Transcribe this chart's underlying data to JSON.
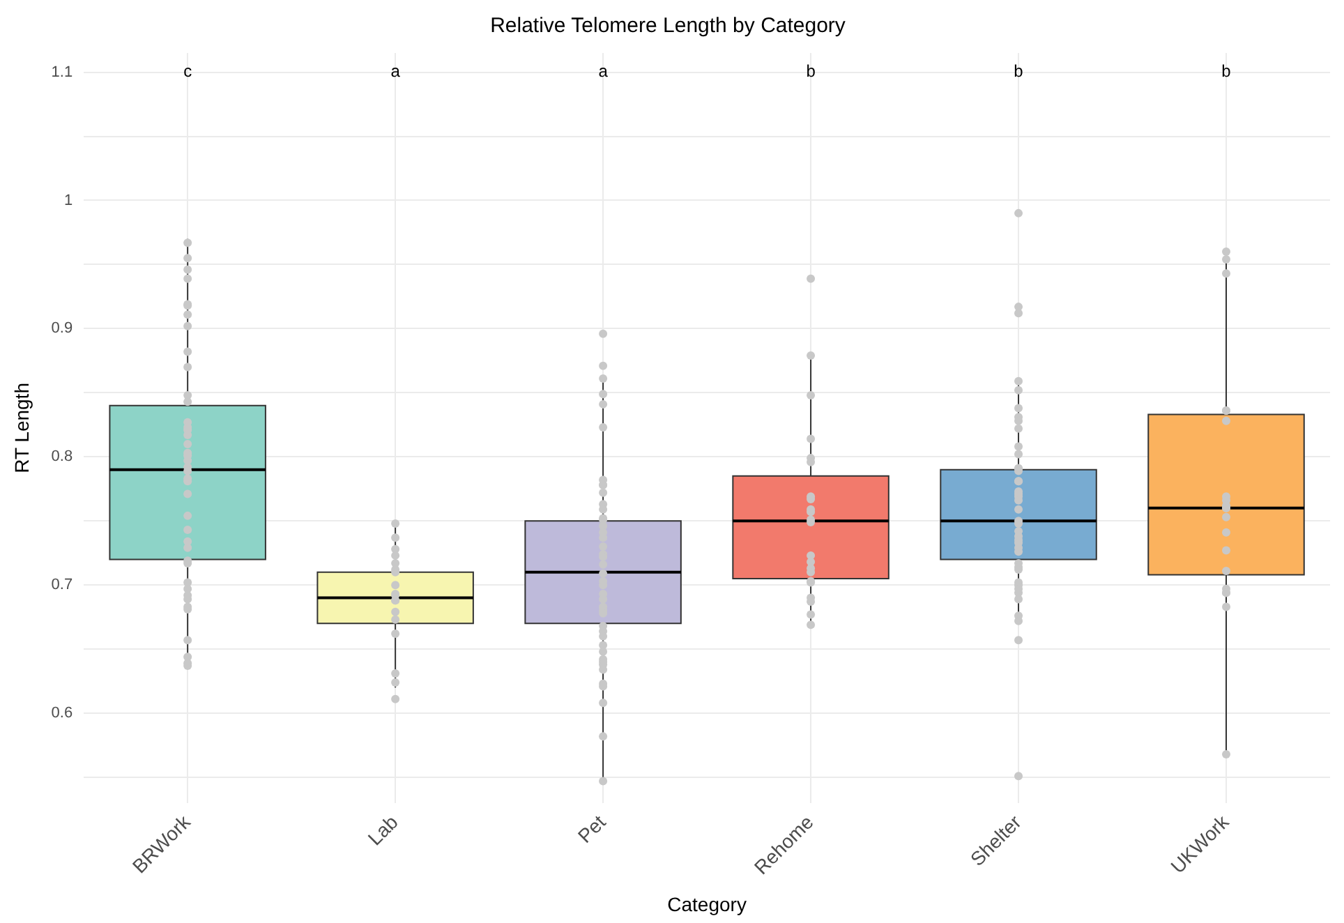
{
  "chart_data": {
    "type": "box",
    "title": "Relative Telomere Length by Category",
    "xlabel": "Category",
    "ylabel": "RT Length",
    "categories": [
      "BRWork",
      "Lab",
      "Pet",
      "Rehome",
      "Shelter",
      "UKWork"
    ],
    "colors": [
      "#8dd3c7",
      "#f7f5b0",
      "#bebada",
      "#f27a6c",
      "#78abd1",
      "#fbb25e"
    ],
    "boxes": [
      {
        "low": 0.64,
        "q1": 0.72,
        "median": 0.79,
        "q3": 0.84,
        "high": 0.97
      },
      {
        "low": 0.62,
        "q1": 0.67,
        "median": 0.69,
        "q3": 0.71,
        "high": 0.75
      },
      {
        "low": 0.55,
        "q1": 0.67,
        "median": 0.71,
        "q3": 0.75,
        "high": 0.86
      },
      {
        "low": 0.67,
        "q1": 0.705,
        "median": 0.75,
        "q3": 0.785,
        "high": 0.88
      },
      {
        "low": 0.67,
        "q1": 0.72,
        "median": 0.75,
        "q3": 0.79,
        "high": 0.86
      },
      {
        "low": 0.57,
        "q1": 0.708,
        "median": 0.76,
        "q3": 0.833,
        "high": 0.96
      }
    ],
    "series": [
      {
        "type": "scatter",
        "color": "#c8c8c8",
        "x": [
          "BRWork",
          "BRWork",
          "BRWork",
          "BRWork",
          "BRWork",
          "BRWork",
          "BRWork",
          "BRWork",
          "BRWork",
          "BRWork",
          "BRWork",
          "BRWork",
          "BRWork",
          "BRWork",
          "BRWork",
          "BRWork",
          "BRWork",
          "BRWork",
          "BRWork",
          "BRWork",
          "BRWork",
          "BRWork",
          "BRWork",
          "BRWork",
          "BRWork",
          "BRWork",
          "BRWork",
          "BRWork",
          "BRWork",
          "BRWork",
          "BRWork",
          "BRWork",
          "BRWork",
          "BRWork",
          "BRWork",
          "BRWork",
          "BRWork",
          "BRWork",
          "BRWork",
          "BRWork",
          "BRWork",
          "Lab",
          "Lab",
          "Lab",
          "Lab",
          "Lab",
          "Lab",
          "Lab",
          "Lab",
          "Lab",
          "Lab",
          "Lab",
          "Lab",
          "Lab",
          "Lab",
          "Lab",
          "Lab",
          "Lab",
          "Lab",
          "Pet",
          "Pet",
          "Pet",
          "Pet",
          "Pet",
          "Pet",
          "Pet",
          "Pet",
          "Pet",
          "Pet",
          "Pet",
          "Pet",
          "Pet",
          "Pet",
          "Pet",
          "Pet",
          "Pet",
          "Pet",
          "Pet",
          "Pet",
          "Pet",
          "Pet",
          "Pet",
          "Pet",
          "Pet",
          "Pet",
          "Pet",
          "Pet",
          "Pet",
          "Pet",
          "Pet",
          "Pet",
          "Pet",
          "Pet",
          "Pet",
          "Pet",
          "Pet",
          "Pet",
          "Pet",
          "Pet",
          "Pet",
          "Pet",
          "Pet",
          "Rehome",
          "Rehome",
          "Rehome",
          "Rehome",
          "Rehome",
          "Rehome",
          "Rehome",
          "Rehome",
          "Rehome",
          "Rehome",
          "Rehome",
          "Rehome",
          "Rehome",
          "Rehome",
          "Rehome",
          "Rehome",
          "Rehome",
          "Rehome",
          "Rehome",
          "Rehome",
          "Rehome",
          "Rehome",
          "Shelter",
          "Shelter",
          "Shelter",
          "Shelter",
          "Shelter",
          "Shelter",
          "Shelter",
          "Shelter",
          "Shelter",
          "Shelter",
          "Shelter",
          "Shelter",
          "Shelter",
          "Shelter",
          "Shelter",
          "Shelter",
          "Shelter",
          "Shelter",
          "Shelter",
          "Shelter",
          "Shelter",
          "Shelter",
          "Shelter",
          "Shelter",
          "Shelter",
          "Shelter",
          "Shelter",
          "Shelter",
          "Shelter",
          "Shelter",
          "Shelter",
          "Shelter",
          "Shelter",
          "Shelter",
          "Shelter",
          "Shelter",
          "Shelter",
          "Shelter",
          "Shelter",
          "Shelter",
          "Shelter",
          "UKWork",
          "UKWork",
          "UKWork",
          "UKWork",
          "UKWork",
          "UKWork",
          "UKWork",
          "UKWork",
          "UKWork",
          "UKWork",
          "UKWork",
          "UKWork",
          "UKWork",
          "UKWork",
          "UKWork",
          "UKWork",
          "UKWork",
          "UKWork",
          "UKWork",
          "UKWork"
        ],
        "values": [
          0.967,
          0.955,
          0.946,
          0.939,
          0.919,
          0.918,
          0.911,
          0.902,
          0.882,
          0.87,
          0.848,
          0.843,
          0.827,
          0.823,
          0.821,
          0.817,
          0.81,
          0.803,
          0.801,
          0.797,
          0.792,
          0.789,
          0.783,
          0.781,
          0.771,
          0.754,
          0.743,
          0.734,
          0.729,
          0.719,
          0.717,
          0.702,
          0.697,
          0.692,
          0.689,
          0.683,
          0.681,
          0.657,
          0.644,
          0.639,
          0.637,
          0.748,
          0.737,
          0.728,
          0.723,
          0.717,
          0.712,
          0.71,
          0.7,
          0.693,
          0.692,
          0.688,
          0.688,
          0.679,
          0.673,
          0.662,
          0.631,
          0.624,
          0.611,
          0.896,
          0.871,
          0.861,
          0.849,
          0.841,
          0.823,
          0.782,
          0.778,
          0.778,
          0.772,
          0.763,
          0.759,
          0.752,
          0.751,
          0.746,
          0.741,
          0.737,
          0.73,
          0.724,
          0.722,
          0.716,
          0.709,
          0.703,
          0.7,
          0.693,
          0.689,
          0.683,
          0.68,
          0.678,
          0.668,
          0.664,
          0.66,
          0.653,
          0.648,
          0.642,
          0.64,
          0.638,
          0.634,
          0.623,
          0.621,
          0.608,
          0.582,
          0.547,
          0.939,
          0.879,
          0.848,
          0.814,
          0.799,
          0.796,
          0.769,
          0.767,
          0.759,
          0.757,
          0.751,
          0.749,
          0.723,
          0.718,
          0.713,
          0.71,
          0.703,
          0.702,
          0.69,
          0.687,
          0.677,
          0.669,
          0.99,
          0.917,
          0.912,
          0.859,
          0.852,
          0.838,
          0.831,
          0.828,
          0.822,
          0.808,
          0.802,
          0.791,
          0.791,
          0.789,
          0.781,
          0.781,
          0.773,
          0.771,
          0.769,
          0.766,
          0.759,
          0.75,
          0.748,
          0.742,
          0.738,
          0.735,
          0.733,
          0.729,
          0.726,
          0.717,
          0.714,
          0.712,
          0.702,
          0.7,
          0.697,
          0.694,
          0.689,
          0.676,
          0.672,
          0.657,
          0.551,
          0.96,
          0.954,
          0.943,
          0.836,
          0.836,
          0.828,
          0.769,
          0.766,
          0.762,
          0.76,
          0.76,
          0.753,
          0.741,
          0.727,
          0.711,
          0.697,
          0.694,
          0.694,
          0.683,
          0.568
        ]
      }
    ],
    "ylim": [
      0.53,
      1.115
    ],
    "yticks": [
      {
        "value": 0.55,
        "label": null
      },
      0.6,
      {
        "value": 0.65,
        "label": null
      },
      0.7,
      {
        "value": 0.75,
        "label": null
      },
      0.8,
      {
        "value": 0.85,
        "label": null
      },
      0.9,
      {
        "value": 0.95,
        "label": null
      },
      1.0,
      {
        "value": 1.05,
        "label": null
      },
      1.1
    ],
    "grid": true,
    "marker": "circle",
    "annotations": [
      "c",
      "a",
      "a",
      "b",
      "b",
      "b"
    ]
  }
}
